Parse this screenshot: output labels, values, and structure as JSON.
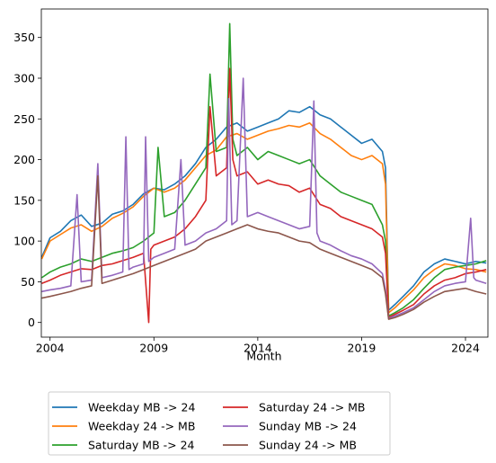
{
  "chart_data": {
    "type": "line",
    "title": "",
    "xlabel": "Month",
    "ylabel": "",
    "xlim": [
      2003.58,
      2025.08
    ],
    "ylim": [
      -18,
      385
    ],
    "x_ticks": [
      2004,
      2009,
      2014,
      2019,
      2024
    ],
    "x_tick_labels": [
      "2004",
      "2009",
      "2014",
      "2019",
      "2024"
    ],
    "y_ticks": [
      0,
      50,
      100,
      150,
      200,
      250,
      300,
      350
    ],
    "y_tick_labels": [
      "0",
      "50",
      "100",
      "150",
      "200",
      "250",
      "300",
      "350"
    ],
    "grid": false,
    "legend_position": "below",
    "series": [
      {
        "name": "Weekday MB -> 24",
        "color": "#1f77b4",
        "x": [
          2003.6,
          2004.0,
          2004.5,
          2005.0,
          2005.5,
          2006.0,
          2006.5,
          2007.0,
          2007.5,
          2008.0,
          2008.5,
          2009.0,
          2009.5,
          2010.0,
          2010.5,
          2011.0,
          2011.5,
          2012.0,
          2012.5,
          2013.0,
          2013.5,
          2014.0,
          2014.5,
          2015.0,
          2015.5,
          2016.0,
          2016.5,
          2017.0,
          2017.5,
          2018.0,
          2018.5,
          2019.0,
          2019.5,
          2020.0,
          2020.15,
          2020.3,
          2020.6,
          2021.0,
          2021.5,
          2022.0,
          2022.5,
          2023.0,
          2023.5,
          2024.0,
          2024.5,
          2025.0
        ],
        "values": [
          80,
          104,
          112,
          125,
          132,
          118,
          122,
          133,
          137,
          145,
          158,
          165,
          163,
          170,
          180,
          195,
          215,
          225,
          240,
          245,
          235,
          240,
          245,
          250,
          260,
          258,
          265,
          255,
          250,
          240,
          230,
          220,
          225,
          210,
          190,
          15,
          22,
          32,
          45,
          62,
          72,
          78,
          75,
          72,
          75,
          73
        ]
      },
      {
        "name": "Weekday 24 -> MB",
        "color": "#ff7f0e",
        "x": [
          2003.6,
          2004.0,
          2004.5,
          2005.0,
          2005.5,
          2006.0,
          2006.5,
          2007.0,
          2007.5,
          2008.0,
          2008.5,
          2009.0,
          2009.5,
          2010.0,
          2010.5,
          2011.0,
          2011.5,
          2012.0,
          2012.5,
          2013.0,
          2013.5,
          2014.0,
          2014.5,
          2015.0,
          2015.5,
          2016.0,
          2016.5,
          2017.0,
          2017.5,
          2018.0,
          2018.5,
          2019.0,
          2019.5,
          2020.0,
          2020.15,
          2020.3,
          2020.6,
          2021.0,
          2021.5,
          2022.0,
          2022.5,
          2023.0,
          2023.5,
          2024.0,
          2024.5,
          2025.0
        ],
        "values": [
          78,
          100,
          108,
          116,
          120,
          112,
          118,
          128,
          134,
          142,
          155,
          165,
          160,
          165,
          175,
          190,
          205,
          212,
          228,
          232,
          225,
          230,
          235,
          238,
          242,
          240,
          245,
          232,
          225,
          215,
          205,
          200,
          205,
          195,
          170,
          12,
          18,
          28,
          40,
          55,
          65,
          72,
          70,
          66,
          65,
          62
        ]
      },
      {
        "name": "Saturday MB -> 24",
        "color": "#2ca02c",
        "x": [
          2003.6,
          2004.0,
          2004.5,
          2005.0,
          2005.5,
          2006.0,
          2006.5,
          2007.0,
          2007.5,
          2008.0,
          2008.5,
          2009.0,
          2009.2,
          2009.5,
          2010.0,
          2010.5,
          2011.0,
          2011.5,
          2011.7,
          2012.0,
          2012.5,
          2012.65,
          2012.8,
          2013.0,
          2013.5,
          2014.0,
          2014.5,
          2015.0,
          2015.5,
          2016.0,
          2016.5,
          2017.0,
          2017.5,
          2018.0,
          2018.5,
          2019.0,
          2019.5,
          2020.0,
          2020.15,
          2020.3,
          2020.6,
          2021.0,
          2021.5,
          2022.0,
          2022.5,
          2023.0,
          2023.5,
          2024.0,
          2024.5,
          2025.0
        ],
        "values": [
          55,
          62,
          68,
          72,
          78,
          75,
          80,
          85,
          88,
          92,
          100,
          110,
          215,
          130,
          135,
          150,
          170,
          190,
          305,
          210,
          215,
          367,
          225,
          205,
          215,
          200,
          210,
          205,
          200,
          195,
          200,
          180,
          170,
          160,
          155,
          150,
          145,
          120,
          100,
          8,
          12,
          18,
          28,
          42,
          55,
          65,
          68,
          70,
          72,
          76
        ]
      },
      {
        "name": "Saturday 24 -> MB",
        "color": "#d62728",
        "x": [
          2003.6,
          2004.0,
          2004.5,
          2005.0,
          2005.5,
          2006.0,
          2006.5,
          2007.0,
          2007.5,
          2008.0,
          2008.5,
          2008.75,
          2008.85,
          2009.0,
          2009.5,
          2010.0,
          2010.5,
          2011.0,
          2011.5,
          2011.7,
          2012.0,
          2012.5,
          2012.65,
          2012.8,
          2013.0,
          2013.5,
          2014.0,
          2014.5,
          2015.0,
          2015.5,
          2016.0,
          2016.5,
          2017.0,
          2017.5,
          2018.0,
          2018.5,
          2019.0,
          2019.5,
          2020.0,
          2020.15,
          2020.3,
          2020.6,
          2021.0,
          2021.5,
          2022.0,
          2022.5,
          2023.0,
          2023.5,
          2024.0,
          2024.5,
          2025.0
        ],
        "values": [
          48,
          52,
          58,
          62,
          66,
          65,
          70,
          72,
          76,
          80,
          85,
          0,
          90,
          95,
          100,
          105,
          115,
          130,
          150,
          265,
          180,
          190,
          312,
          200,
          180,
          185,
          170,
          175,
          170,
          168,
          160,
          165,
          145,
          140,
          130,
          125,
          120,
          115,
          105,
          85,
          6,
          10,
          15,
          22,
          35,
          45,
          52,
          55,
          60,
          62,
          65
        ]
      },
      {
        "name": "Sunday MB -> 24",
        "color": "#9467bd",
        "x": [
          2003.6,
          2004.0,
          2004.5,
          2005.0,
          2005.3,
          2005.5,
          2006.0,
          2006.3,
          2006.5,
          2007.0,
          2007.5,
          2007.65,
          2007.8,
          2008.0,
          2008.5,
          2008.6,
          2008.75,
          2009.0,
          2009.5,
          2010.0,
          2010.3,
          2010.5,
          2011.0,
          2011.5,
          2012.0,
          2012.5,
          2012.6,
          2012.75,
          2013.0,
          2013.3,
          2013.5,
          2014.0,
          2014.5,
          2015.0,
          2015.5,
          2016.0,
          2016.5,
          2016.7,
          2016.85,
          2017.0,
          2017.5,
          2018.0,
          2018.5,
          2019.0,
          2019.5,
          2020.0,
          2020.15,
          2020.3,
          2020.6,
          2021.0,
          2021.5,
          2022.0,
          2022.5,
          2023.0,
          2023.5,
          2024.0,
          2024.25,
          2024.4,
          2024.5,
          2025.0
        ],
        "values": [
          38,
          40,
          42,
          45,
          157,
          50,
          52,
          195,
          55,
          58,
          62,
          228,
          65,
          68,
          72,
          228,
          75,
          80,
          85,
          90,
          200,
          95,
          100,
          110,
          115,
          125,
          275,
          120,
          125,
          300,
          130,
          135,
          130,
          125,
          120,
          115,
          118,
          272,
          110,
          100,
          95,
          88,
          82,
          78,
          72,
          60,
          40,
          5,
          8,
          12,
          18,
          28,
          38,
          45,
          48,
          50,
          128,
          55,
          52,
          48
        ]
      },
      {
        "name": "Sunday 24 -> MB",
        "color": "#8c564b",
        "x": [
          2003.6,
          2004.0,
          2004.5,
          2005.0,
          2005.5,
          2006.0,
          2006.3,
          2006.5,
          2007.0,
          2007.5,
          2008.0,
          2008.5,
          2009.0,
          2009.5,
          2010.0,
          2010.5,
          2011.0,
          2011.5,
          2012.0,
          2012.5,
          2013.0,
          2013.5,
          2014.0,
          2014.5,
          2015.0,
          2015.5,
          2016.0,
          2016.5,
          2017.0,
          2017.5,
          2018.0,
          2018.5,
          2019.0,
          2019.5,
          2020.0,
          2020.15,
          2020.3,
          2020.6,
          2021.0,
          2021.5,
          2022.0,
          2022.5,
          2023.0,
          2023.5,
          2024.0,
          2024.5,
          2025.0
        ],
        "values": [
          30,
          32,
          35,
          38,
          42,
          45,
          180,
          48,
          52,
          56,
          60,
          65,
          70,
          75,
          80,
          85,
          90,
          100,
          105,
          110,
          115,
          120,
          115,
          112,
          110,
          105,
          100,
          98,
          90,
          85,
          80,
          75,
          70,
          65,
          55,
          35,
          4,
          6,
          10,
          16,
          25,
          32,
          38,
          40,
          42,
          38,
          35
        ]
      }
    ]
  }
}
